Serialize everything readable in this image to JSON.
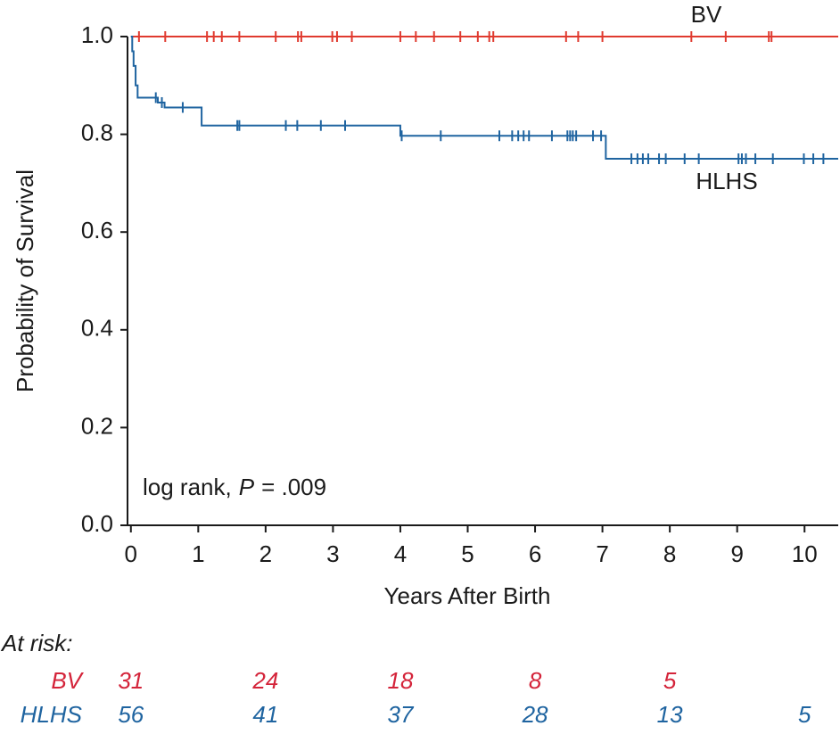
{
  "chart_data": {
    "type": "step",
    "x_label": "Years After Birth",
    "y_label": "Probability of Survival",
    "annotation": [
      "log rank,",
      "P",
      "= .009"
    ],
    "xlim": [
      -0.05,
      10.5
    ],
    "ylim": [
      0,
      1
    ],
    "xticks": [
      0,
      1,
      2,
      3,
      4,
      5,
      6,
      7,
      8,
      9,
      10
    ],
    "yticks": [
      {
        "value": 0,
        "label": "0.0"
      },
      {
        "value": 0.2,
        "label": "0.2"
      },
      {
        "value": 0.4,
        "label": "0.4"
      },
      {
        "value": 0.6,
        "label": "0.6"
      },
      {
        "value": 0.8,
        "label": "0.8"
      },
      {
        "value": 1,
        "label": "1.0"
      }
    ],
    "series": [
      {
        "name": "BV",
        "color": "#e03a2f",
        "x": [
          0,
          10.5
        ],
        "values": [
          1,
          1
        ],
        "censor_x": [
          0.12,
          0.51,
          1.13,
          1.23,
          1.35,
          1.61,
          2.15,
          2.48,
          2.53,
          2.99,
          3.06,
          3.28,
          4.0,
          4.23,
          4.5,
          4.89,
          5.15,
          5.32,
          5.38,
          6.46,
          6.64,
          7.0,
          8.32,
          8.83,
          9.47,
          9.51
        ],
        "censor_values": [
          1,
          1,
          1,
          1,
          1,
          1,
          1,
          1,
          1,
          1,
          1,
          1,
          1,
          1,
          1,
          1,
          1,
          1,
          1,
          1,
          1,
          1,
          1,
          1,
          1,
          1
        ]
      },
      {
        "name": "HLHS",
        "color": "#1f64a0",
        "x": [
          0,
          0.02,
          0.04,
          0.07,
          0.1,
          0.4,
          0.5,
          1.05,
          4.0,
          7.05,
          10.5
        ],
        "values": [
          1,
          0.97,
          0.94,
          0.9,
          0.875,
          0.865,
          0.855,
          0.818,
          0.797,
          0.75,
          0.75
        ],
        "censor_x": [
          0.37,
          0.46,
          0.77,
          1.58,
          1.61,
          2.3,
          2.47,
          2.82,
          3.18,
          4.02,
          4.6,
          5.47,
          5.66,
          5.75,
          5.83,
          5.91,
          6.25,
          6.48,
          6.52,
          6.56,
          6.61,
          6.86,
          6.98,
          7.43,
          7.52,
          7.6,
          7.68,
          7.84,
          7.94,
          8.22,
          8.43,
          9.02,
          9.07,
          9.13,
          9.27,
          9.53,
          9.99,
          10.13,
          10.28
        ],
        "censor_values": [
          0.875,
          0.865,
          0.855,
          0.818,
          0.818,
          0.818,
          0.818,
          0.818,
          0.818,
          0.797,
          0.797,
          0.797,
          0.797,
          0.797,
          0.797,
          0.797,
          0.797,
          0.797,
          0.797,
          0.797,
          0.797,
          0.797,
          0.797,
          0.75,
          0.75,
          0.75,
          0.75,
          0.75,
          0.75,
          0.75,
          0.75,
          0.75,
          0.75,
          0.75,
          0.75,
          0.75,
          0.75,
          0.75,
          0.75
        ]
      }
    ],
    "at_risk": {
      "title": "At risk:",
      "x": [
        0,
        2,
        4,
        6,
        8,
        10
      ],
      "rows": [
        {
          "name": "BV",
          "color": "#d4243a",
          "values": [
            31,
            24,
            18,
            8,
            5,
            null
          ]
        },
        {
          "name": "HLHS",
          "color": "#1f64a0",
          "values": [
            56,
            41,
            37,
            28,
            13,
            5
          ]
        }
      ]
    }
  }
}
